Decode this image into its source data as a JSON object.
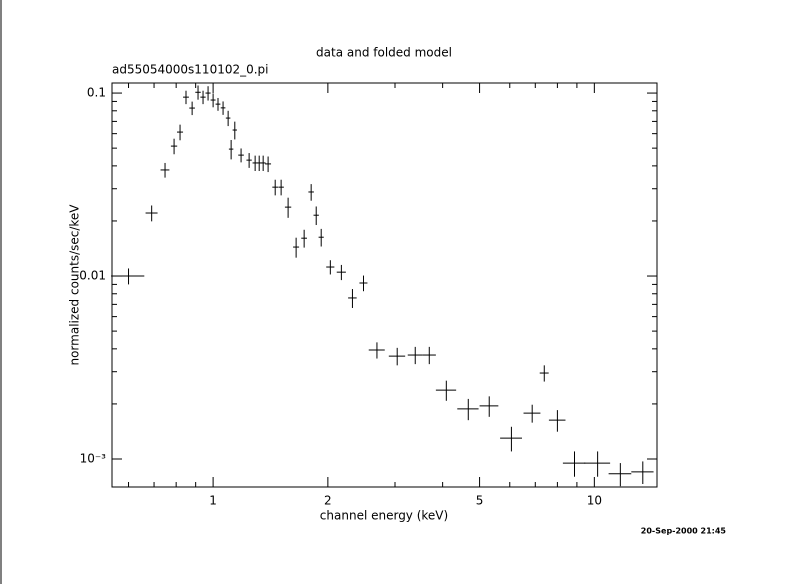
{
  "chart_data": {
    "type": "scatter",
    "title": "data and folded model",
    "subtitle": "ad55054000s110102_0.pi",
    "xlabel": "channel energy (keV)",
    "ylabel": "normalized counts/sec/keV",
    "annotation": "20-Sep-2000 21:45",
    "xlog": true,
    "ylog": true,
    "color": "#000000",
    "xlim": [
      0.543,
      14.6
    ],
    "ylim": [
      0.000703,
      0.1135
    ],
    "xticks": [
      1,
      2,
      5,
      10
    ],
    "xminorticks": [
      0.6,
      0.7,
      0.8,
      0.9,
      3,
      4,
      6,
      7,
      8,
      9
    ],
    "yticks": [
      {
        "value": 0.001,
        "label": "10⁻³"
      },
      0.01,
      0.1
    ],
    "yminorticks": [
      0.002,
      0.003,
      0.004,
      0.005,
      0.006,
      0.007,
      0.008,
      0.009,
      0.02,
      0.03,
      0.04,
      0.05,
      0.06,
      0.07,
      0.08,
      0.09
    ],
    "x": [
      0.6,
      0.69,
      0.748,
      0.79,
      0.819,
      0.849,
      0.881,
      0.913,
      0.941,
      0.97,
      1.0,
      1.03,
      1.062,
      1.095,
      1.115,
      1.14,
      1.184,
      1.243,
      1.289,
      1.321,
      1.353,
      1.394,
      1.455,
      1.508,
      1.573,
      1.651,
      1.733,
      1.808,
      1.864,
      1.921,
      2.03,
      2.17,
      2.32,
      2.48,
      2.69,
      3.04,
      3.39,
      3.69,
      4.09,
      4.67,
      5.3,
      6.06,
      6.87,
      7.39,
      8.0,
      8.87,
      10.2,
      11.7,
      13.4
    ],
    "values": [
      0.01,
      0.0221,
      0.038,
      0.0513,
      0.0612,
      0.095,
      0.0828,
      0.101,
      0.095,
      0.1,
      0.0916,
      0.087,
      0.083,
      0.073,
      0.0494,
      0.0628,
      0.0458,
      0.043,
      0.0415,
      0.0415,
      0.0415,
      0.041,
      0.0306,
      0.0306,
      0.0238,
      0.0144,
      0.0161,
      0.0288,
      0.0215,
      0.0163,
      0.0112,
      0.0105,
      0.00759,
      0.00916,
      0.00394,
      0.00365,
      0.0037,
      0.0037,
      0.00238,
      0.00188,
      0.00195,
      0.0013,
      0.00178,
      0.00295,
      0.00163,
      0.00095,
      0.00095,
      0.00083,
      0.00085
    ],
    "xerr": [
      0.06,
      0.025,
      0.02,
      0.015,
      0.015,
      0.015,
      0.015,
      0.015,
      0.015,
      0.015,
      0.015,
      0.015,
      0.015,
      0.015,
      0.015,
      0.015,
      0.02,
      0.02,
      0.02,
      0.02,
      0.02,
      0.025,
      0.025,
      0.025,
      0.03,
      0.03,
      0.03,
      0.03,
      0.03,
      0.03,
      0.05,
      0.06,
      0.06,
      0.06,
      0.13,
      0.15,
      0.15,
      0.15,
      0.25,
      0.3,
      0.3,
      0.4,
      0.35,
      0.2,
      0.4,
      0.6,
      0.8,
      0.8,
      0.9
    ],
    "yerr": [
      0.001,
      0.0022,
      0.0035,
      0.005,
      0.006,
      0.008,
      0.007,
      0.009,
      0.008,
      0.009,
      0.008,
      0.007,
      0.007,
      0.007,
      0.006,
      0.007,
      0.004,
      0.004,
      0.004,
      0.004,
      0.004,
      0.004,
      0.003,
      0.003,
      0.003,
      0.0018,
      0.0018,
      0.003,
      0.0025,
      0.0018,
      0.001,
      0.001,
      0.0009,
      0.0009,
      0.0004,
      0.0004,
      0.0004,
      0.0004,
      0.0003,
      0.00025,
      0.00025,
      0.0002,
      0.0002,
      0.0003,
      0.00022,
      0.00015,
      0.00015,
      0.00012,
      0.00012
    ]
  }
}
